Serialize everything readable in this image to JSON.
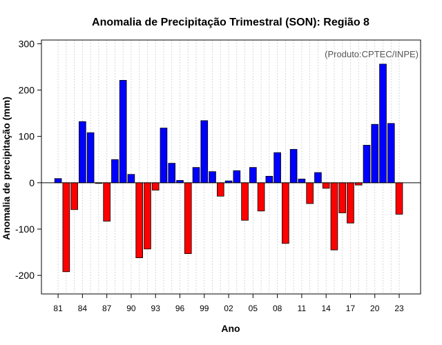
{
  "chart_data": {
    "type": "bar",
    "title": "Anomalia de Precipitação Trimestral (SON): Região 8",
    "xlabel": "Ano",
    "ylabel": "Anomalia de precipitação (mm)",
    "note": "(Produto:CPTEC/INPE)",
    "ylim": [
      -240,
      308
    ],
    "yticks": [
      -200,
      -100,
      0,
      100,
      200,
      300
    ],
    "x_tick_labels": [
      "81",
      "84",
      "87",
      "90",
      "93",
      "96",
      "99",
      "02",
      "05",
      "08",
      "11",
      "14",
      "17",
      "20",
      "23"
    ],
    "x_tick_years": [
      1981,
      1984,
      1987,
      1990,
      1993,
      1996,
      1999,
      2002,
      2005,
      2008,
      2011,
      2014,
      2017,
      2020,
      2023
    ],
    "grid": "vertical dotted",
    "positive_color": "#0000ff",
    "negative_color": "#ff0000",
    "years": [
      1981,
      1982,
      1983,
      1984,
      1985,
      1986,
      1987,
      1988,
      1989,
      1990,
      1991,
      1992,
      1993,
      1994,
      1995,
      1996,
      1997,
      1998,
      1999,
      2000,
      2001,
      2002,
      2003,
      2004,
      2005,
      2006,
      2007,
      2008,
      2009,
      2010,
      2011,
      2012,
      2013,
      2014,
      2015,
      2016,
      2017,
      2018,
      2019,
      2020,
      2021,
      2022,
      2023
    ],
    "values": [
      9,
      -192,
      -58,
      132,
      108,
      -1,
      -83,
      50,
      221,
      18,
      -162,
      -143,
      -16,
      118,
      42,
      5,
      -153,
      33,
      134,
      24,
      -29,
      4,
      26,
      -81,
      33,
      -61,
      14,
      65,
      -131,
      72,
      8,
      -45,
      22,
      -12,
      -145,
      -65,
      -87,
      -5,
      81,
      126,
      256,
      128,
      -68
    ]
  }
}
